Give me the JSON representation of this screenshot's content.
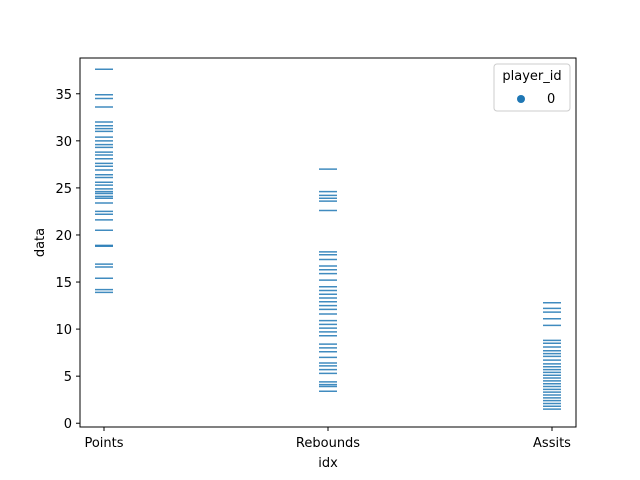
{
  "chart_data": {
    "type": "scatter",
    "marker": "hline",
    "categories": [
      "Points",
      "Rebounds",
      "Assits"
    ],
    "xlabel": "idx",
    "ylabel": "data",
    "ylim": [
      -0.4,
      38.8
    ],
    "yticks": [
      0,
      5,
      10,
      15,
      20,
      25,
      30,
      35
    ],
    "grid": false,
    "legend": {
      "title": "player_id",
      "placement": "top-right",
      "entries": [
        {
          "label": "0",
          "color": "#1f77b4"
        }
      ]
    },
    "series": [
      {
        "color": "#1f77b4",
        "points": [
          {
            "x": "Points",
            "values": [
              13.9,
              14.2,
              15.4,
              16.6,
              16.9,
              18.8,
              18.9,
              20.5,
              21.6,
              22.2,
              22.5,
              23.4,
              23.9,
              24.1,
              24.4,
              24.6,
              24.9,
              25.3,
              25.6,
              26.1,
              26.4,
              26.9,
              27.3,
              27.6,
              28.1,
              28.5,
              28.8,
              29.3,
              29.6,
              30.0,
              30.4,
              31.0,
              31.3,
              31.6,
              32.0,
              33.6,
              34.5,
              34.9,
              37.6
            ]
          },
          {
            "x": "Rebounds",
            "values": [
              3.4,
              3.9,
              4.1,
              4.4,
              5.3,
              5.7,
              6.1,
              6.4,
              7.0,
              7.6,
              8.0,
              8.4,
              9.3,
              9.7,
              10.1,
              10.5,
              10.9,
              11.6,
              12.1,
              12.5,
              12.9,
              13.3,
              13.7,
              14.1,
              14.5,
              15.2,
              15.9,
              16.3,
              16.7,
              17.4,
              17.9,
              18.2,
              22.6,
              23.6,
              23.9,
              24.2,
              24.6,
              27.0
            ]
          },
          {
            "x": "Assits",
            "values": [
              1.5,
              1.8,
              2.1,
              2.4,
              2.7,
              3.0,
              3.3,
              3.6,
              3.9,
              4.2,
              4.5,
              4.8,
              5.1,
              5.4,
              5.7,
              6.0,
              6.3,
              6.7,
              7.1,
              7.4,
              7.7,
              8.1,
              8.5,
              8.8,
              10.4,
              11.1,
              11.8,
              12.2,
              12.8
            ]
          }
        ]
      }
    ]
  }
}
